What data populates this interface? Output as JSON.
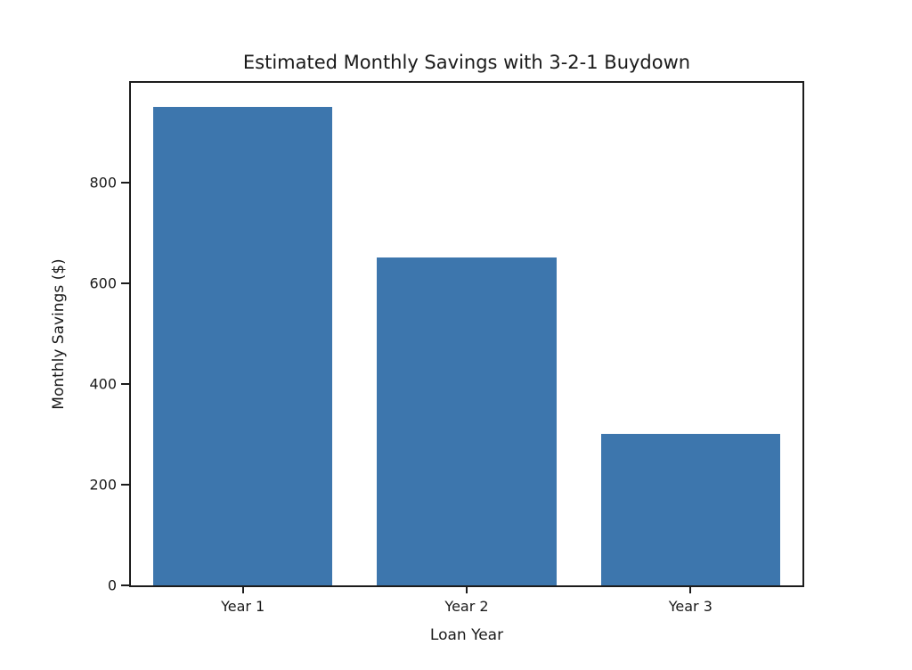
{
  "chart_data": {
    "type": "bar",
    "title": "Estimated Monthly Savings with 3-2-1 Buydown",
    "xlabel": "Loan Year",
    "ylabel": "Monthly Savings ($)",
    "categories": [
      "Year 1",
      "Year 2",
      "Year 3"
    ],
    "values": [
      950,
      650,
      300
    ],
    "ylim": [
      0,
      997.5
    ],
    "yticks": [
      0,
      200,
      400,
      600,
      800
    ],
    "bar_color": "#3d76ad",
    "bar_width_fraction": 0.8,
    "grid": false,
    "legend": "none",
    "background_color": "#ffffff",
    "spine_color": "#1c1c1c"
  }
}
